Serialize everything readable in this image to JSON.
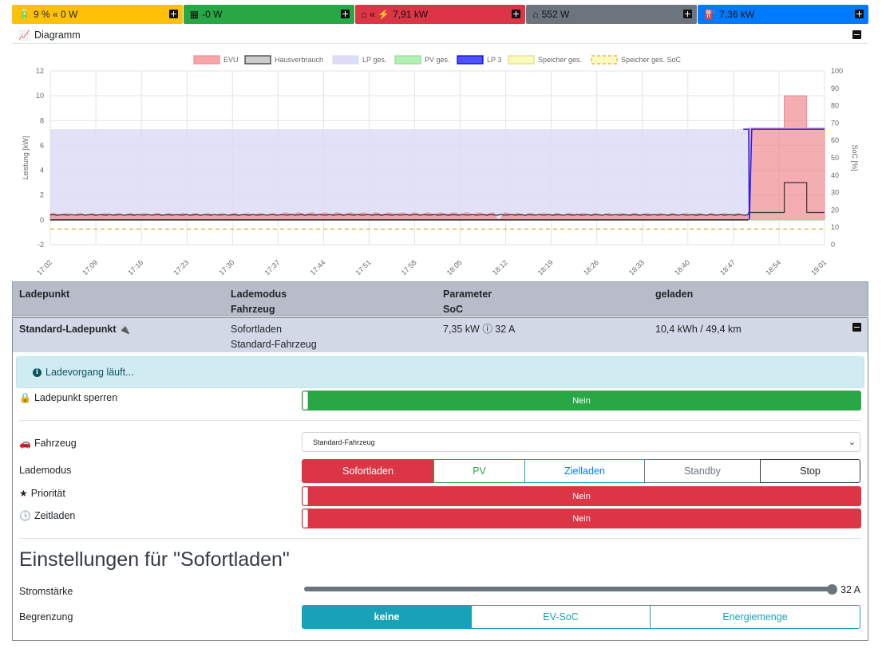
{
  "tiles": [
    {
      "icon": "car-battery-icon",
      "glyph": "🔋",
      "text": "9 % « 0 W",
      "color": "#ffc107"
    },
    {
      "icon": "solar-panel-icon",
      "glyph": "▦",
      "text": "-0 W",
      "color": "#28a745"
    },
    {
      "icon": "home-grid-icon",
      "glyph": "⌂ « ⚡",
      "text": "7,91 kW",
      "color": "#dc3545"
    },
    {
      "icon": "home-icon",
      "glyph": "⌂",
      "text": "552 W",
      "color": "#6c757d"
    },
    {
      "icon": "charging-station-icon",
      "glyph": "⛽",
      "text": "7,36 kW",
      "color": "#007bff"
    }
  ],
  "diagram": {
    "title": "Diagramm",
    "icon": "chart-area-icon"
  },
  "chart_data": {
    "type": "area",
    "legend": [
      "EVU",
      "Hausverbrauch",
      "LP ges.",
      "PV ges.",
      "LP 3",
      "Speicher ges.",
      "Speicher ges. SoC"
    ],
    "legend_placement": "top-center",
    "ylabel": "Leistung [kW]",
    "y2label": "SoC [%]",
    "ylim": [
      -2,
      12
    ],
    "y2lim": [
      0,
      100
    ],
    "yticks": [
      "-2",
      "0",
      "2",
      "4",
      "6",
      "8",
      "10",
      "12"
    ],
    "y2ticks": [
      "0",
      "10",
      "20",
      "30",
      "40",
      "50",
      "60",
      "70",
      "80",
      "90",
      "100"
    ],
    "xticks": [
      "17:02",
      "17:09",
      "17:16",
      "17:23",
      "17:30",
      "17:37",
      "17:44",
      "17:51",
      "17:58",
      "18:05",
      "18:12",
      "18:19",
      "18:26",
      "18:33",
      "18:40",
      "18:47",
      "18:54",
      "19:01"
    ],
    "grid": true,
    "series": [
      {
        "name": "EVU",
        "color": "#f8a5a8",
        "values_desc": "~0.5 kW until 18:49, then ~7.4 kW, peak ~10 kW 18:55–18:58"
      },
      {
        "name": "Hausverbrauch",
        "color": "#333333",
        "values_desc": "~0.4 kW, ~0.6 kW after 18:49, ~3 kW 18:55–18:58"
      },
      {
        "name": "LP ges.",
        "color": "#dcdcf7",
        "values": "7.3 kW until 18:49, then ~7.3 kW"
      },
      {
        "name": "PV ges.",
        "color": "#8fe08f",
        "values": "0 kW"
      },
      {
        "name": "LP 3",
        "color": "#0000ff",
        "values": "7.3 kW at 18:48–18:49, then ~7.3 kW from 18:49"
      },
      {
        "name": "Speicher ges.",
        "color": "#f5f5a0",
        "values": "0 kW"
      },
      {
        "name": "Speicher ges. SoC",
        "color": "#f0a030",
        "values": "9 %"
      }
    ]
  },
  "table": {
    "headers": [
      [
        "Ladepunkt",
        ""
      ],
      [
        "Lademodus",
        "Fahrzeug"
      ],
      [
        "Parameter",
        "SoC"
      ],
      [
        "geladen",
        ""
      ]
    ],
    "row": {
      "name": "Standard-Ladepunkt",
      "mode": "Sofortladen",
      "vehicle": "Standard-Fahrzeug",
      "param": "7,35 kW ⓘ 32 A",
      "charged": "10,4 kWh / 49,4 km"
    }
  },
  "alert": "Ladevorgang läuft...",
  "lock": {
    "label": "Ladepunkt sperren",
    "value": "Nein"
  },
  "vehicle": {
    "label": "Fahrzeug",
    "selected": "Standard-Fahrzeug"
  },
  "mode": {
    "label": "Lademodus",
    "options": [
      "Sofortladen",
      "PV",
      "Zielladen",
      "Standby",
      "Stop"
    ]
  },
  "priority": {
    "label": "Priorität",
    "value": "Nein"
  },
  "timed": {
    "label": "Zeitladen",
    "value": "Nein"
  },
  "settings_title": "Einstellungen für \"Sofortladen\"",
  "current": {
    "label": "Stromstärke",
    "value": "32 A",
    "fraction": 1.0
  },
  "limit": {
    "label": "Begrenzung",
    "options": [
      "keine",
      "EV-SoC",
      "Energiemenge"
    ]
  }
}
